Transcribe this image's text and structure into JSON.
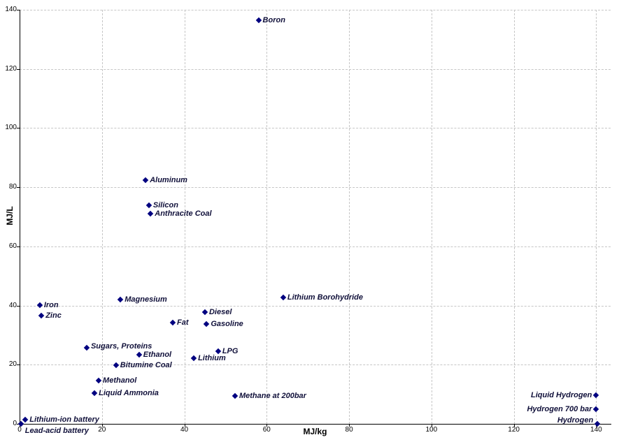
{
  "chart_data": {
    "type": "scatter",
    "title": "",
    "xlabel": "MJ/kg",
    "ylabel": "MJ/L",
    "xlim": [
      0,
      143.5
    ],
    "ylim": [
      0,
      140
    ],
    "xticks": [
      0,
      20,
      40,
      60,
      80,
      100,
      120,
      140
    ],
    "yticks": [
      0,
      20,
      40,
      60,
      80,
      100,
      120,
      140
    ],
    "grid": true,
    "legend": false,
    "marker": "diamond",
    "marker_color": "#000080",
    "label_color": "#10103a",
    "grid_color": "#c6c6c6",
    "axis_color": "#000000",
    "points": [
      {
        "label": "Boron",
        "x": 58,
        "y": 136.5,
        "label_side": "right",
        "dy": 0
      },
      {
        "label": "Aluminum",
        "x": 30.6,
        "y": 82.5,
        "label_side": "right",
        "dy": 0
      },
      {
        "label": "Silicon",
        "x": 31.4,
        "y": 74,
        "label_side": "right",
        "dy": 0
      },
      {
        "label": "Anthracite Coal",
        "x": 31.8,
        "y": 71,
        "label_side": "right",
        "dy": 0
      },
      {
        "label": "Magnesium",
        "x": 24.5,
        "y": 42,
        "label_side": "right",
        "dy": 0
      },
      {
        "label": "Lithium Borohydride",
        "x": 64,
        "y": 42.7,
        "label_side": "right",
        "dy": 0
      },
      {
        "label": "Iron",
        "x": 4.9,
        "y": 40.2,
        "label_side": "right",
        "dy": 0
      },
      {
        "label": "Zinc",
        "x": 5.3,
        "y": 36.6,
        "label_side": "right",
        "dy": 0
      },
      {
        "label": "Diesel",
        "x": 45,
        "y": 37.8,
        "label_side": "right",
        "dy": 0
      },
      {
        "label": "Fat",
        "x": 37.2,
        "y": 34.2,
        "label_side": "right",
        "dy": 0
      },
      {
        "label": "Gasoline",
        "x": 45.4,
        "y": 33.8,
        "label_side": "right",
        "dy": 0
      },
      {
        "label": "Sugars, Proteins",
        "x": 16.3,
        "y": 25.7,
        "label_side": "right",
        "dy": -2
      },
      {
        "label": "Ethanol",
        "x": 29,
        "y": 23.4,
        "label_side": "right",
        "dy": 0
      },
      {
        "label": "LPG",
        "x": 48.2,
        "y": 24.6,
        "label_side": "right",
        "dy": 0
      },
      {
        "label": "Lithium",
        "x": 42.3,
        "y": 22.2,
        "label_side": "right",
        "dy": 0
      },
      {
        "label": "Bitumine Coal",
        "x": 23.4,
        "y": 19.8,
        "label_side": "right",
        "dy": 0
      },
      {
        "label": "Methanol",
        "x": 19.2,
        "y": 14.6,
        "label_side": "right",
        "dy": 0
      },
      {
        "label": "Liquid Ammonia",
        "x": 18.2,
        "y": 10.4,
        "label_side": "right",
        "dy": 0
      },
      {
        "label": "Methane at 200bar",
        "x": 52.3,
        "y": 9.4,
        "label_side": "right",
        "dy": 0
      },
      {
        "label": "Liquid Hydrogen",
        "x": 140,
        "y": 9.7,
        "label_side": "left",
        "dy": 0
      },
      {
        "label": "Hydrogen 700 bar",
        "x": 140,
        "y": 5,
        "label_side": "left",
        "dy": 0
      },
      {
        "label": "Hydrogen",
        "x": 140.3,
        "y": 0,
        "label_side": "left",
        "dy": -5
      },
      {
        "label": "Lithium-ion battery",
        "x": 1.4,
        "y": 1.4,
        "label_side": "right",
        "dy": 0
      },
      {
        "label": "Lead-acid battery",
        "x": 0.3,
        "y": 0,
        "label_side": "right",
        "dy": 10
      }
    ]
  }
}
